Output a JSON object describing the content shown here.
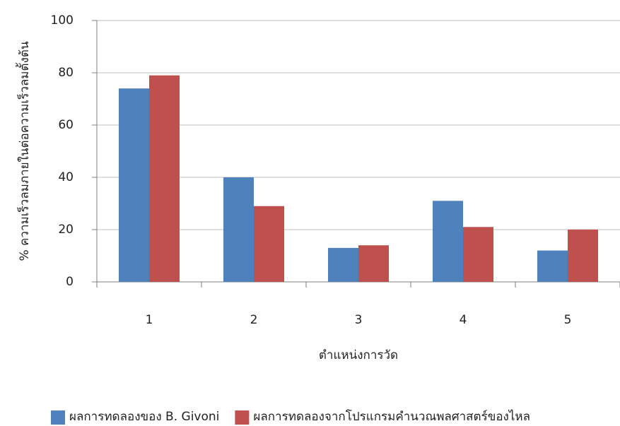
{
  "chart_data": {
    "type": "bar",
    "y_label": "% ความเร็วลมภายในต่อความเร็วลมตั้งต้น",
    "x_label": "ตำแหน่งการวัด",
    "categories": [
      "1",
      "2",
      "3",
      "4",
      "5"
    ],
    "series": [
      {
        "name": "ผลการทดลองของ B. Givoni",
        "color": "#4f81bd",
        "values": [
          74,
          40,
          13,
          31,
          12
        ]
      },
      {
        "name": "ผลการทดลองจากโปรแกรมคำนวณพลศาสตร์ของไหล",
        "color": "#c0504d",
        "values": [
          79,
          29,
          14,
          21,
          20
        ]
      }
    ],
    "ylim": [
      0,
      100
    ],
    "yticks": [
      0,
      20,
      40,
      60,
      80,
      100
    ],
    "grid": true,
    "legend": "bottom"
  }
}
